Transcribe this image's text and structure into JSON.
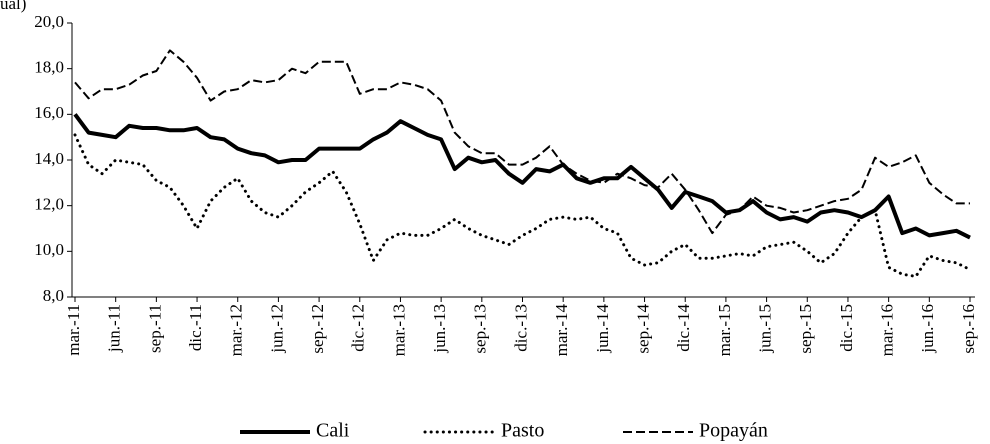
{
  "chart_data": {
    "type": "line",
    "y_axis_label": "ual)",
    "categories": [
      "mar.-11",
      null,
      null,
      "jun.-11",
      null,
      null,
      "sep.-11",
      null,
      null,
      "dic.-11",
      null,
      null,
      "mar.-12",
      null,
      null,
      "jun.-12",
      null,
      null,
      "sep.-12",
      null,
      null,
      "dic.-12",
      null,
      null,
      "mar.-13",
      null,
      null,
      "jun.-13",
      null,
      null,
      "sep.-13",
      null,
      null,
      "dic.-13",
      null,
      null,
      "mar.-14",
      null,
      null,
      "jun.-14",
      null,
      null,
      "sep.-14",
      null,
      null,
      "dic.-14",
      null,
      null,
      "mar.-15",
      null,
      null,
      "jun.-15",
      null,
      null,
      "sep.-15",
      null,
      null,
      "dic.-15",
      null,
      null,
      "mar.-16",
      null,
      null,
      "jun.-16",
      null,
      null,
      "sep.-16"
    ],
    "series": [
      {
        "name": "Cali",
        "color": "#000000",
        "dash": "solid",
        "values": [
          16.0,
          15.2,
          15.1,
          15.0,
          15.5,
          15.4,
          15.4,
          15.3,
          15.3,
          15.4,
          15.0,
          14.9,
          14.5,
          14.3,
          14.2,
          13.9,
          14.0,
          14.0,
          14.5,
          14.5,
          14.5,
          14.5,
          14.9,
          15.2,
          15.7,
          15.4,
          15.1,
          14.9,
          13.6,
          14.1,
          13.9,
          14.0,
          13.4,
          13.0,
          13.6,
          13.5,
          13.8,
          13.2,
          13.0,
          13.2,
          13.2,
          13.7,
          13.2,
          12.7,
          11.9,
          12.6,
          12.4,
          12.2,
          11.7,
          11.8,
          12.2,
          11.7,
          11.4,
          11.5,
          11.3,
          11.7,
          11.8,
          11.7,
          11.5,
          11.8,
          12.4,
          10.8,
          11.0,
          10.7,
          10.8,
          10.9,
          10.6
        ]
      },
      {
        "name": "Pasto",
        "color": "#000000",
        "dash": "dotted",
        "values": [
          15.1,
          13.8,
          13.4,
          14.0,
          13.9,
          13.8,
          13.1,
          12.8,
          12.0,
          11.0,
          12.2,
          12.8,
          13.2,
          12.2,
          11.7,
          11.5,
          12.0,
          12.6,
          13.0,
          13.5,
          12.6,
          11.2,
          9.6,
          10.5,
          10.8,
          10.7,
          10.7,
          11.0,
          11.4,
          11.0,
          10.7,
          10.5,
          10.3,
          10.7,
          11.0,
          11.4,
          11.5,
          11.4,
          11.5,
          11.0,
          10.8,
          9.7,
          9.4,
          9.5,
          10.0,
          10.3,
          9.7,
          9.7,
          9.8,
          9.9,
          9.8,
          10.2,
          10.3,
          10.4,
          10.0,
          9.5,
          9.9,
          10.8,
          11.5,
          11.8,
          9.3,
          9.0,
          8.9,
          9.8,
          9.6,
          9.5,
          9.2
        ]
      },
      {
        "name": "Popayán",
        "color": "#000000",
        "dash": "dashed",
        "values": [
          17.4,
          16.7,
          17.1,
          17.1,
          17.3,
          17.7,
          17.9,
          18.8,
          18.3,
          17.6,
          16.6,
          17.0,
          17.1,
          17.5,
          17.4,
          17.5,
          18.0,
          17.8,
          18.3,
          18.3,
          18.3,
          16.9,
          17.1,
          17.1,
          17.4,
          17.3,
          17.1,
          16.6,
          15.2,
          14.6,
          14.3,
          14.3,
          13.8,
          13.8,
          14.1,
          14.6,
          13.8,
          13.4,
          13.1,
          13.0,
          13.4,
          13.2,
          12.9,
          12.8,
          13.4,
          12.7,
          11.8,
          10.8,
          11.6,
          11.8,
          12.4,
          12.0,
          11.9,
          11.7,
          11.8,
          12.0,
          12.2,
          12.3,
          12.7,
          14.1,
          13.7,
          13.9,
          14.2,
          13.0,
          12.5,
          12.1,
          12.1
        ]
      }
    ],
    "ylim": [
      8,
      20
    ],
    "yticks": [
      {
        "value": 8,
        "label": "8,0"
      },
      {
        "value": 10,
        "label": "10,0"
      },
      {
        "value": 12,
        "label": "12,0"
      },
      {
        "value": 14,
        "label": "14,0"
      },
      {
        "value": 16,
        "label": "16,0"
      },
      {
        "value": 18,
        "label": "18,0"
      },
      {
        "value": 20,
        "label": "20,0"
      }
    ],
    "grid": false,
    "legend": "bottom"
  }
}
